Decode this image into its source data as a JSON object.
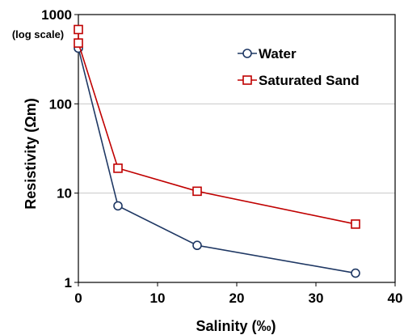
{
  "chart_data": {
    "type": "line",
    "xlabel": "Salinity (‰)",
    "ylabel": "Resistivity (Ωm)",
    "y_scale_note": "(log scale)",
    "y_scale": "log",
    "xlim": [
      0,
      40
    ],
    "ylim": [
      1,
      1000
    ],
    "x_ticks": [
      "0",
      "10",
      "20",
      "30",
      "40"
    ],
    "x_tick_values": [
      0,
      10,
      20,
      30,
      40
    ],
    "y_ticks": [
      "1",
      "10",
      "100",
      "1000"
    ],
    "y_tick_values": [
      1,
      10,
      100,
      1000
    ],
    "grid": "horizontal",
    "legend_position": "top-right",
    "series": [
      {
        "name": "Water",
        "color": "#1F3864",
        "marker": "circle",
        "x": [
          0,
          5,
          15,
          35
        ],
        "y": [
          420,
          7.2,
          2.6,
          1.27
        ]
      },
      {
        "name": "Saturated Sand",
        "color": "#C00000",
        "marker": "square",
        "x": [
          0,
          0,
          5,
          15,
          35
        ],
        "y": [
          680,
          480,
          19,
          10.5,
          4.5
        ]
      }
    ]
  }
}
